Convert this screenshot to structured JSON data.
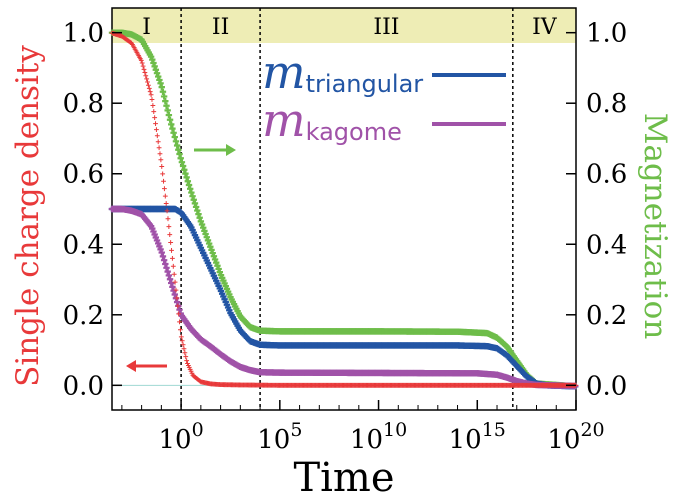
{
  "chart_data": {
    "type": "line",
    "xlabel": "Time",
    "ylabel_left": "Single charge density",
    "ylabel_right": "Magnetization",
    "x_scale": "log10",
    "xlim_log10": [
      -3.5,
      20
    ],
    "ylim_left": [
      -0.07,
      1.07
    ],
    "ylim_right": [
      -0.07,
      1.07
    ],
    "x_tick_labels": [
      {
        "base": "10",
        "exp": "0",
        "log10": 0
      },
      {
        "base": "10",
        "exp": "5",
        "log10": 5
      },
      {
        "base": "10",
        "exp": "10",
        "log10": 10
      },
      {
        "base": "10",
        "exp": "15",
        "log10": 15
      },
      {
        "base": "10",
        "exp": "20",
        "log10": 20
      }
    ],
    "y_ticks_left": [
      "0.0",
      "0.2",
      "0.4",
      "0.6",
      "0.8",
      "1.0"
    ],
    "y_ticks_right": [
      "0.0",
      "0.2",
      "0.4",
      "0.6",
      "0.8",
      "1.0"
    ],
    "regions": [
      {
        "label": "I",
        "from": -3.5,
        "to": 0
      },
      {
        "label": "II",
        "from": 0,
        "to": 4
      },
      {
        "label": "III",
        "from": 4,
        "to": 16.8
      },
      {
        "label": "IV",
        "from": 16.8,
        "to": 20
      }
    ],
    "region_boundaries_log10": [
      0,
      4,
      16.8
    ],
    "region_band_color": "#eeedb5",
    "legend": [
      {
        "symbol": "m",
        "subscript": "triangular",
        "color": "#2255a4"
      },
      {
        "symbol": "m",
        "subscript": "kagome",
        "color": "#a052a8"
      }
    ],
    "arrows": [
      {
        "direction": "left",
        "axis": "left",
        "color": "#e8393a"
      },
      {
        "direction": "right",
        "axis": "right",
        "color": "#6ebd4a"
      }
    ],
    "series": [
      {
        "name": "Single charge density",
        "axis": "left",
        "marker": "plus",
        "color": "#e8393a",
        "x_log10": [
          -3.5,
          -3.0,
          -2.5,
          -2.0,
          -1.5,
          -1.0,
          -0.7,
          -0.5,
          -0.3,
          -0.1,
          0.0,
          0.3,
          0.6,
          1.0,
          1.5,
          2.0,
          3.0,
          5.0,
          10.0,
          15.0,
          20.0
        ],
        "y": [
          0.999,
          0.99,
          0.97,
          0.92,
          0.82,
          0.63,
          0.49,
          0.39,
          0.29,
          0.19,
          0.14,
          0.065,
          0.028,
          0.01,
          0.004,
          0.002,
          0.001,
          0.0,
          0.0,
          0.0,
          0.0
        ]
      },
      {
        "name": "m_triangular",
        "axis": "right",
        "marker": "plus",
        "color": "#2255a4",
        "x_log10": [
          -3.5,
          -2.0,
          -1.0,
          -0.3,
          0.0,
          0.5,
          1.0,
          1.5,
          2.0,
          2.5,
          3.0,
          3.5,
          4.0,
          5.0,
          10.0,
          14.0,
          15.5,
          16.0,
          16.5,
          17.0,
          17.5,
          18.0,
          18.5,
          20.0
        ],
        "y": [
          0.5,
          0.5,
          0.5,
          0.5,
          0.49,
          0.45,
          0.39,
          0.33,
          0.27,
          0.205,
          0.155,
          0.125,
          0.115,
          0.113,
          0.113,
          0.113,
          0.111,
          0.105,
          0.085,
          0.055,
          0.025,
          0.005,
          0.0,
          -0.003
        ]
      },
      {
        "name": "m_kagome",
        "axis": "right",
        "marker": "plus",
        "color": "#a052a8",
        "x_log10": [
          -3.5,
          -3.0,
          -2.5,
          -2.0,
          -1.5,
          -1.0,
          -0.5,
          0.0,
          0.5,
          1.0,
          1.5,
          2.0,
          2.5,
          3.0,
          3.5,
          4.0,
          5.0,
          10.0,
          15.0,
          16.0,
          16.5,
          17.0,
          17.5,
          18.0,
          20.0
        ],
        "y": [
          0.5,
          0.5,
          0.495,
          0.485,
          0.45,
          0.38,
          0.29,
          0.2,
          0.16,
          0.13,
          0.11,
          0.088,
          0.068,
          0.052,
          0.043,
          0.037,
          0.036,
          0.035,
          0.034,
          0.03,
          0.022,
          0.012,
          0.005,
          0.001,
          -0.002
        ]
      },
      {
        "name": "Magnetization",
        "axis": "right",
        "marker": "plus",
        "color": "#6ebd4a",
        "x_log10": [
          -3.5,
          -3.0,
          -2.5,
          -2.0,
          -1.5,
          -1.0,
          -0.5,
          0.0,
          0.5,
          1.0,
          1.5,
          2.0,
          2.5,
          3.0,
          3.5,
          4.0,
          5.0,
          10.0,
          14.0,
          15.5,
          16.0,
          16.5,
          17.0,
          17.5,
          18.0,
          20.0
        ],
        "y": [
          1.0,
          1.0,
          0.995,
          0.98,
          0.93,
          0.85,
          0.74,
          0.64,
          0.55,
          0.465,
          0.39,
          0.315,
          0.25,
          0.195,
          0.165,
          0.155,
          0.153,
          0.153,
          0.152,
          0.148,
          0.135,
          0.11,
          0.07,
          0.03,
          0.005,
          -0.003
        ]
      }
    ]
  }
}
